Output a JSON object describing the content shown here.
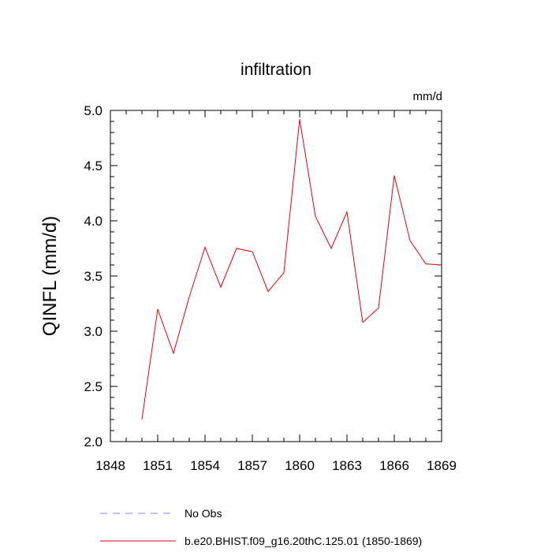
{
  "chart_data": {
    "type": "line",
    "title": "infiltration",
    "units_label": "mm/d",
    "ylabel": "QINFL  (mm/d)",
    "xlabel": "",
    "xlim": [
      1848,
      1869
    ],
    "ylim": [
      2.0,
      5.0
    ],
    "x_major_ticks": [
      1848,
      1851,
      1854,
      1857,
      1860,
      1863,
      1866,
      1869
    ],
    "y_major_ticks": [
      2.0,
      2.5,
      3.0,
      3.5,
      4.0,
      4.5,
      5.0
    ],
    "y_tick_labels": [
      "2.0",
      "2.5",
      "3.0",
      "3.5",
      "4.0",
      "4.5",
      "5.0"
    ],
    "grid": false,
    "legend_position": "bottom",
    "series": [
      {
        "name": "b.e20.BHIST.f09_g16.20thC.125.01 (1850-1869)",
        "color": "#e8000b",
        "style": "solid",
        "x": [
          1850,
          1851,
          1852,
          1853,
          1854,
          1855,
          1856,
          1857,
          1858,
          1859,
          1860,
          1861,
          1862,
          1863,
          1864,
          1865,
          1866,
          1867,
          1868,
          1869
        ],
        "values": [
          2.2,
          3.2,
          2.8,
          3.31,
          3.76,
          3.4,
          3.75,
          3.72,
          3.36,
          3.53,
          4.92,
          4.04,
          3.75,
          4.08,
          3.08,
          3.21,
          4.41,
          3.82,
          3.61,
          3.6
        ]
      },
      {
        "name": "No Obs",
        "color": "#8080ff",
        "style": "dashed",
        "x": [],
        "values": []
      }
    ]
  }
}
